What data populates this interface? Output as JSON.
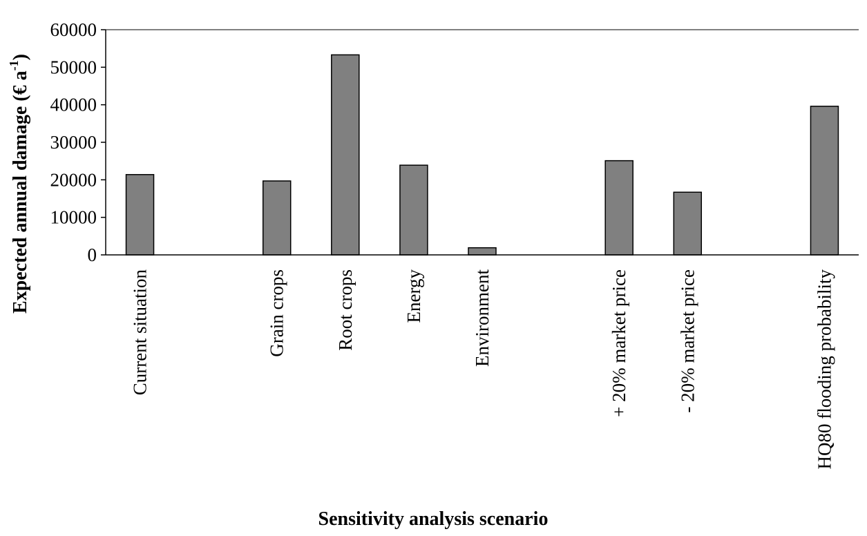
{
  "chart_data": {
    "type": "bar",
    "title": "",
    "xlabel": "Sensitivity analysis scenario",
    "ylabel_main": "Expected annual damage (€ a",
    "ylabel_sup": "-1",
    "ylabel_close": ")",
    "ylim": [
      0,
      60000
    ],
    "yticks": [
      0,
      10000,
      20000,
      30000,
      40000,
      50000,
      60000
    ],
    "grid": false,
    "legend": "none",
    "bar_color": "#808080",
    "categories": [
      "Current situation",
      "",
      "Grain crops",
      "Root crops",
      "Energy",
      "Environment",
      "",
      "+ 20% market price",
      "- 20% market price",
      "",
      "HQ80 flooding probability"
    ],
    "values": [
      21400,
      null,
      19700,
      53300,
      23900,
      1900,
      null,
      25100,
      16700,
      null,
      39600
    ]
  }
}
